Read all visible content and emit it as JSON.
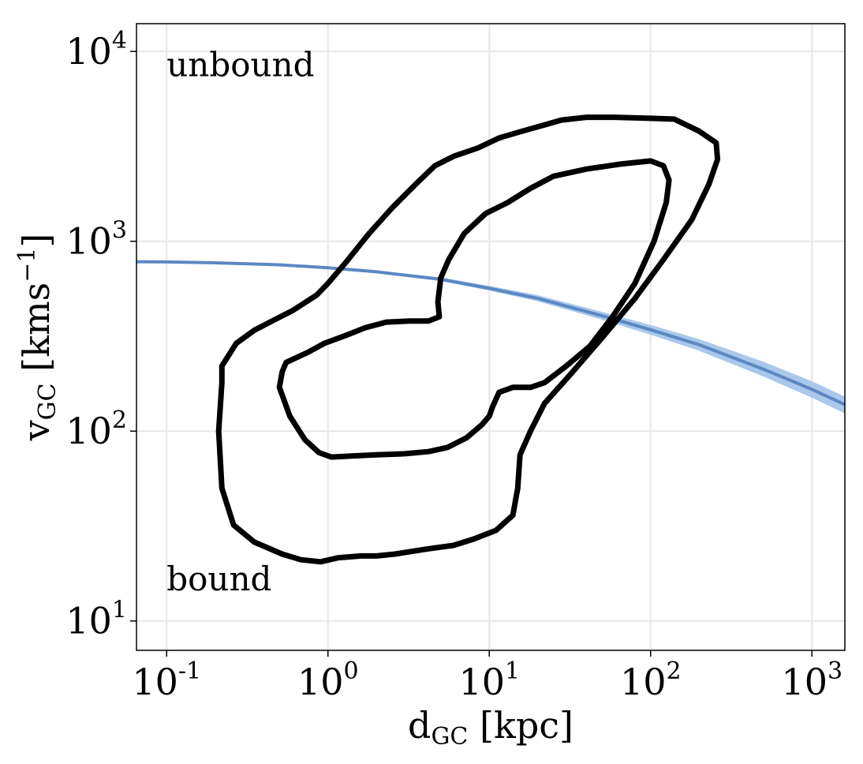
{
  "chart_data": {
    "type": "line",
    "title": "",
    "xlabel": "d",
    "xlabel_sub": "GC",
    "xlabel_unit": " [kpc]",
    "ylabel": "v",
    "ylabel_sub": "GC",
    "ylabel_unit_pre": " [kms",
    "ylabel_unit_exp": "−1",
    "ylabel_unit_post": "]",
    "xscale": "log",
    "yscale": "log",
    "xlim": [
      0.065,
      1600
    ],
    "ylim": [
      7,
      14000
    ],
    "grid": true,
    "x_ticks": [
      {
        "value": 0.1,
        "base": "10",
        "exp": "-1"
      },
      {
        "value": 1,
        "base": "10",
        "exp": "0"
      },
      {
        "value": 10,
        "base": "10",
        "exp": "1"
      },
      {
        "value": 100,
        "base": "10",
        "exp": "2"
      },
      {
        "value": 1000,
        "base": "10",
        "exp": "3"
      }
    ],
    "y_ticks": [
      {
        "value": 10,
        "base": "10",
        "exp": "1"
      },
      {
        "value": 100,
        "base": "10",
        "exp": "2"
      },
      {
        "value": 1000,
        "base": "10",
        "exp": "3"
      },
      {
        "value": 10000,
        "base": "10",
        "exp": "4"
      }
    ],
    "annotations": [
      {
        "text": "unbound",
        "x": 0.1,
        "y": 7400
      },
      {
        "text": "bound",
        "x": 0.1,
        "y": 14.5
      }
    ],
    "series": [
      {
        "kind": "escape-velocity-curve",
        "color": "#5b88c2",
        "band_color": "#a9c8ec",
        "x": [
          0.065,
          0.1,
          0.2,
          0.5,
          1,
          2,
          5,
          10,
          20,
          50,
          100,
          200,
          500,
          1000,
          1600
        ],
        "y": [
          780,
          778,
          770,
          752,
          725,
          690,
          630,
          565,
          500,
          405,
          342,
          285,
          212,
          166,
          138
        ],
        "band_lower": [
          775,
          773,
          765,
          746,
          718,
          680,
          618,
          550,
          483,
          386,
          322,
          265,
          194,
          150,
          124
        ],
        "band_upper": [
          785,
          783,
          776,
          759,
          733,
          700,
          645,
          582,
          520,
          425,
          362,
          305,
          232,
          183,
          152
        ]
      },
      {
        "kind": "contour-outer",
        "color": "#000000",
        "x": [
          0.22,
          0.27,
          0.35,
          0.45,
          0.6,
          0.85,
          1.0,
          1.3,
          1.8,
          2.5,
          3.5,
          4.6,
          6.0,
          8.5,
          11.5,
          16,
          22,
          28,
          40,
          60,
          95,
          140,
          200,
          255,
          260,
          230,
          180,
          120,
          80,
          50,
          32,
          22,
          18,
          15.5,
          15,
          14,
          11,
          8,
          6,
          4.2,
          2.6,
          2.0,
          1.6,
          1.15,
          0.9,
          0.68,
          0.52,
          0.35,
          0.26,
          0.22,
          0.21,
          0.22
        ],
        "y": [
          220,
          290,
          340,
          380,
          430,
          520,
          600,
          780,
          1100,
          1500,
          2000,
          2500,
          2800,
          3100,
          3500,
          3800,
          4100,
          4350,
          4500,
          4500,
          4450,
          4400,
          3800,
          3300,
          2700,
          2000,
          1300,
          800,
          500,
          310,
          200,
          140,
          100,
          75,
          50,
          36,
          30,
          27,
          25,
          24,
          22.5,
          22,
          22,
          21.5,
          20.5,
          21,
          22.5,
          26,
          32,
          50,
          100,
          180
        ]
      },
      {
        "kind": "contour-inner",
        "color": "#000000",
        "x": [
          0.55,
          0.75,
          0.95,
          1.3,
          1.7,
          2.3,
          3.2,
          4.2,
          4.9,
          4.8,
          5.0,
          5.6,
          7.0,
          9.5,
          13,
          18,
          25,
          40,
          65,
          100,
          120,
          130,
          125,
          105,
          80,
          58,
          42,
          30,
          22,
          18,
          14,
          11.5,
          10.5,
          10,
          9,
          7.2,
          5.5,
          4.2,
          3.0,
          2.0,
          1.4,
          1.05,
          0.88,
          0.72,
          0.58,
          0.5,
          0.52
        ],
        "y": [
          230,
          260,
          290,
          320,
          350,
          375,
          380,
          380,
          400,
          480,
          640,
          800,
          1100,
          1400,
          1600,
          1900,
          2200,
          2400,
          2550,
          2650,
          2500,
          2100,
          1600,
          1000,
          600,
          400,
          280,
          220,
          180,
          170,
          170,
          160,
          135,
          120,
          108,
          92,
          82,
          78,
          76,
          75,
          74,
          73,
          77,
          90,
          120,
          170,
          205
        ]
      }
    ]
  }
}
